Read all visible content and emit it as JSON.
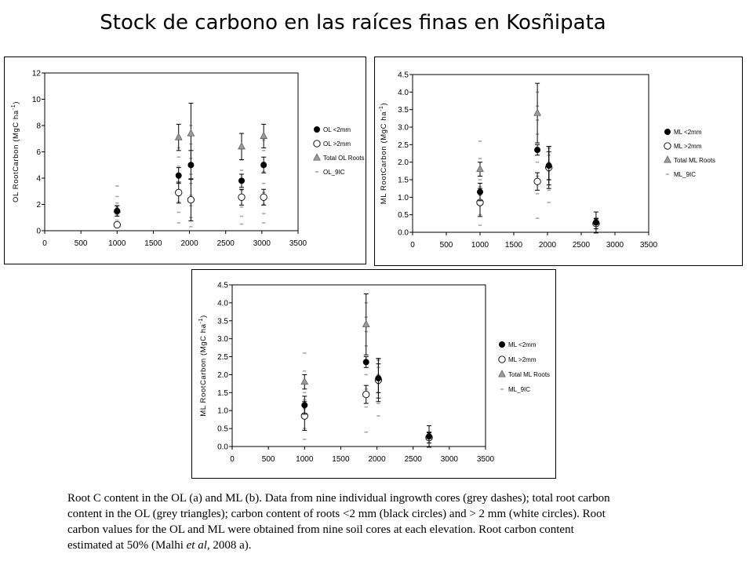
{
  "slide": {
    "title": "Stock de carbono en las raíces finas en Kosñipata"
  },
  "caption": {
    "line1": "Root C content in the OL (a) and ML (b). Data from nine individual ingrowth cores (grey dashes); total root carbon",
    "line2": "content in the OL (grey triangles); carbon content of roots <2 mm (black circles) and > 2 mm (white circles). Root",
    "line3": "carbon values for the OL and ML were obtained from nine soil cores at each elevation. Root carbon content",
    "line4_before_italic": "estimated at 50% (Malhi ",
    "line4_italic": "et al",
    "line4_after_italic": ", 2008 a)."
  },
  "chart_data": [
    {
      "id": "a",
      "type": "scatter",
      "ylabel": "OL RootCarbon (MgC ha-1)",
      "xlim": [
        0,
        3500
      ],
      "ylim": [
        0,
        12
      ],
      "xticks": [
        0,
        500,
        1000,
        1500,
        2000,
        2500,
        3000,
        3500
      ],
      "yticks": [
        0,
        2,
        4,
        6,
        8,
        10,
        12
      ],
      "ytick_labels": [
        "0",
        "2",
        "4",
        "6",
        "8",
        "10",
        "12"
      ],
      "legend_position": "right",
      "series": [
        {
          "name": "OL <2mm",
          "marker": "black-circle",
          "points": [
            {
              "x": 1000,
              "y": 1.5,
              "err": 0.4
            },
            {
              "x": 1850,
              "y": 4.2,
              "err": 0.6
            },
            {
              "x": 2020,
              "y": 5.0,
              "err": 1.1
            },
            {
              "x": 2720,
              "y": 3.8,
              "err": 0.5
            },
            {
              "x": 3025,
              "y": 5.0,
              "err": 0.6
            }
          ]
        },
        {
          "name": "OL >2mm",
          "marker": "white-circle",
          "points": [
            {
              "x": 1000,
              "y": 0.45,
              "err": 0.1
            },
            {
              "x": 1850,
              "y": 2.9,
              "err": 0.8
            },
            {
              "x": 2020,
              "y": 2.35,
              "err": 1.6
            },
            {
              "x": 2720,
              "y": 2.55,
              "err": 0.6
            },
            {
              "x": 3025,
              "y": 2.55,
              "err": 0.6
            }
          ]
        },
        {
          "name": "Total OL Roots",
          "marker": "grey-triangle",
          "points": [
            {
              "x": 1000,
              "y": 1.6,
              "err": 0.3
            },
            {
              "x": 1850,
              "y": 7.1,
              "err": 1.0
            },
            {
              "x": 2020,
              "y": 7.4,
              "err": 2.3
            },
            {
              "x": 2720,
              "y": 6.4,
              "err": 1.0
            },
            {
              "x": 3025,
              "y": 7.2,
              "err": 0.9
            }
          ]
        },
        {
          "name": "OL_9IC",
          "marker": "grey-dash",
          "points": [
            {
              "x": 1000,
              "y": 0.3
            },
            {
              "x": 1000,
              "y": 0.8
            },
            {
              "x": 1000,
              "y": 1.2
            },
            {
              "x": 1000,
              "y": 1.6
            },
            {
              "x": 1000,
              "y": 2.1
            },
            {
              "x": 1000,
              "y": 2.6
            },
            {
              "x": 1000,
              "y": 3.4
            },
            {
              "x": 1850,
              "y": 0.6
            },
            {
              "x": 1850,
              "y": 1.4
            },
            {
              "x": 1850,
              "y": 2.2
            },
            {
              "x": 1850,
              "y": 3.1
            },
            {
              "x": 1850,
              "y": 4.0
            },
            {
              "x": 1850,
              "y": 4.9
            },
            {
              "x": 1850,
              "y": 5.6
            },
            {
              "x": 1850,
              "y": 6.3
            },
            {
              "x": 1850,
              "y": 7.2
            },
            {
              "x": 2020,
              "y": 0.3
            },
            {
              "x": 2020,
              "y": 1.0
            },
            {
              "x": 2020,
              "y": 1.9
            },
            {
              "x": 2020,
              "y": 2.7
            },
            {
              "x": 2020,
              "y": 3.6
            },
            {
              "x": 2020,
              "y": 4.3
            },
            {
              "x": 2020,
              "y": 5.5
            },
            {
              "x": 2020,
              "y": 6.6
            },
            {
              "x": 2020,
              "y": 8.0
            },
            {
              "x": 2720,
              "y": 0.5
            },
            {
              "x": 2720,
              "y": 1.1
            },
            {
              "x": 2720,
              "y": 1.8
            },
            {
              "x": 2720,
              "y": 2.4
            },
            {
              "x": 2720,
              "y": 3.1
            },
            {
              "x": 2720,
              "y": 3.9
            },
            {
              "x": 2720,
              "y": 4.6
            },
            {
              "x": 2720,
              "y": 5.4
            },
            {
              "x": 3025,
              "y": 0.6
            },
            {
              "x": 3025,
              "y": 1.3
            },
            {
              "x": 3025,
              "y": 2.0
            },
            {
              "x": 3025,
              "y": 2.9
            },
            {
              "x": 3025,
              "y": 3.6
            },
            {
              "x": 3025,
              "y": 4.5
            },
            {
              "x": 3025,
              "y": 5.2
            },
            {
              "x": 3025,
              "y": 6.1
            },
            {
              "x": 3025,
              "y": 6.9
            }
          ]
        }
      ]
    },
    {
      "id": "b",
      "type": "scatter",
      "ylabel": "ML RootCarbon (MgC ha-1)",
      "xlim": [
        0,
        3500
      ],
      "ylim": [
        0,
        4.5
      ],
      "xticks": [
        0,
        500,
        1000,
        1500,
        2000,
        2500,
        3000,
        3500
      ],
      "yticks": [
        0,
        0.5,
        1,
        1.5,
        2,
        2.5,
        3,
        3.5,
        4,
        4.5
      ],
      "ytick_labels": [
        "0.0",
        "0.5",
        "1.0",
        "1.5",
        "2.0",
        "2.5",
        "3.0",
        "3.5",
        "4.0",
        "4.5"
      ],
      "legend_position": "right",
      "series": [
        {
          "name": "ML <2mm",
          "marker": "black-circle",
          "points": [
            {
              "x": 1000,
              "y": 1.15,
              "err": 0.25
            },
            {
              "x": 1850,
              "y": 2.35,
              "err": 0.15
            },
            {
              "x": 2020,
              "y": 1.9,
              "err": 0.4
            },
            {
              "x": 2720,
              "y": 0.28,
              "err": 0.3
            }
          ]
        },
        {
          "name": "ML >2mm",
          "marker": "white-circle",
          "points": [
            {
              "x": 1000,
              "y": 0.85,
              "err": 0.4
            },
            {
              "x": 1850,
              "y": 1.45,
              "err": 0.25
            },
            {
              "x": 2020,
              "y": 1.85,
              "err": 0.6
            },
            {
              "x": 2720,
              "y": 0.25,
              "err": 0.15
            }
          ]
        },
        {
          "name": "Total ML Roots",
          "marker": "grey-triangle",
          "points": [
            {
              "x": 1000,
              "y": 1.8,
              "err": 0.2
            },
            {
              "x": 1850,
              "y": 3.4,
              "err": 0.85
            },
            {
              "x": 2020,
              "y": 1.9,
              "err": 0.55
            },
            {
              "x": 2720,
              "y": 0.28,
              "err": 0.1
            }
          ]
        },
        {
          "name": "ML_9IC",
          "marker": "grey-dash",
          "points": [
            {
              "x": 1000,
              "y": 0.2
            },
            {
              "x": 1000,
              "y": 0.5
            },
            {
              "x": 1000,
              "y": 0.8
            },
            {
              "x": 1000,
              "y": 1.05
            },
            {
              "x": 1000,
              "y": 1.3
            },
            {
              "x": 1000,
              "y": 1.5
            },
            {
              "x": 1000,
              "y": 1.75
            },
            {
              "x": 1000,
              "y": 2.1
            },
            {
              "x": 1000,
              "y": 2.6
            },
            {
              "x": 1850,
              "y": 0.4
            },
            {
              "x": 1850,
              "y": 1.1
            },
            {
              "x": 1850,
              "y": 1.6
            },
            {
              "x": 1850,
              "y": 2.0
            },
            {
              "x": 1850,
              "y": 2.4
            },
            {
              "x": 1850,
              "y": 2.8
            },
            {
              "x": 1850,
              "y": 3.2
            },
            {
              "x": 1850,
              "y": 3.6
            },
            {
              "x": 1850,
              "y": 4.0
            },
            {
              "x": 2020,
              "y": 0.85
            },
            {
              "x": 2020,
              "y": 1.2
            },
            {
              "x": 2020,
              "y": 1.5
            },
            {
              "x": 2020,
              "y": 1.75
            },
            {
              "x": 2020,
              "y": 2.0
            },
            {
              "x": 2020,
              "y": 2.2
            },
            {
              "x": 2020,
              "y": 2.4
            },
            {
              "x": 2720,
              "y": 0.1
            },
            {
              "x": 2720,
              "y": 0.2
            },
            {
              "x": 2720,
              "y": 0.3
            }
          ]
        }
      ]
    },
    {
      "id": "c",
      "type": "scatter",
      "ylabel": "ML RootCarbon (MgC ha-1)",
      "xlim": [
        0,
        3500
      ],
      "ylim": [
        0,
        4.5
      ],
      "xticks": [
        0,
        500,
        1000,
        1500,
        2000,
        2500,
        3000,
        3500
      ],
      "yticks": [
        0,
        0.5,
        1,
        1.5,
        2,
        2.5,
        3,
        3.5,
        4,
        4.5
      ],
      "ytick_labels": [
        "0.0",
        "0.5",
        "1.0",
        "1.5",
        "2.0",
        "2.5",
        "3.0",
        "3.5",
        "4.0",
        "4.5"
      ],
      "legend_position": "right",
      "series": [
        {
          "name": "ML <2mm",
          "marker": "black-circle",
          "points": [
            {
              "x": 1000,
              "y": 1.15,
              "err": 0.25
            },
            {
              "x": 1850,
              "y": 2.35,
              "err": 0.15
            },
            {
              "x": 2020,
              "y": 1.9,
              "err": 0.4
            },
            {
              "x": 2720,
              "y": 0.28,
              "err": 0.3
            }
          ]
        },
        {
          "name": "ML >2mm",
          "marker": "white-circle",
          "points": [
            {
              "x": 1000,
              "y": 0.85,
              "err": 0.4
            },
            {
              "x": 1850,
              "y": 1.45,
              "err": 0.25
            },
            {
              "x": 2020,
              "y": 1.85,
              "err": 0.6
            },
            {
              "x": 2720,
              "y": 0.25,
              "err": 0.15
            }
          ]
        },
        {
          "name": "Total ML Roots",
          "marker": "grey-triangle",
          "points": [
            {
              "x": 1000,
              "y": 1.8,
              "err": 0.2
            },
            {
              "x": 1850,
              "y": 3.4,
              "err": 0.85
            },
            {
              "x": 2020,
              "y": 1.9,
              "err": 0.55
            },
            {
              "x": 2720,
              "y": 0.28,
              "err": 0.1
            }
          ]
        },
        {
          "name": "ML_9IC",
          "marker": "grey-dash",
          "points": [
            {
              "x": 1000,
              "y": 0.2
            },
            {
              "x": 1000,
              "y": 0.5
            },
            {
              "x": 1000,
              "y": 0.8
            },
            {
              "x": 1000,
              "y": 1.05
            },
            {
              "x": 1000,
              "y": 1.3
            },
            {
              "x": 1000,
              "y": 1.5
            },
            {
              "x": 1000,
              "y": 1.75
            },
            {
              "x": 1000,
              "y": 2.1
            },
            {
              "x": 1000,
              "y": 2.6
            },
            {
              "x": 1850,
              "y": 0.4
            },
            {
              "x": 1850,
              "y": 1.1
            },
            {
              "x": 1850,
              "y": 1.6
            },
            {
              "x": 1850,
              "y": 2.0
            },
            {
              "x": 1850,
              "y": 2.4
            },
            {
              "x": 1850,
              "y": 2.8
            },
            {
              "x": 1850,
              "y": 3.2
            },
            {
              "x": 1850,
              "y": 3.6
            },
            {
              "x": 1850,
              "y": 4.0
            },
            {
              "x": 2020,
              "y": 0.85
            },
            {
              "x": 2020,
              "y": 1.2
            },
            {
              "x": 2020,
              "y": 1.5
            },
            {
              "x": 2020,
              "y": 1.75
            },
            {
              "x": 2020,
              "y": 2.0
            },
            {
              "x": 2020,
              "y": 2.2
            },
            {
              "x": 2020,
              "y": 2.4
            },
            {
              "x": 2720,
              "y": 0.1
            },
            {
              "x": 2720,
              "y": 0.2
            },
            {
              "x": 2720,
              "y": 0.3
            }
          ]
        }
      ]
    }
  ]
}
